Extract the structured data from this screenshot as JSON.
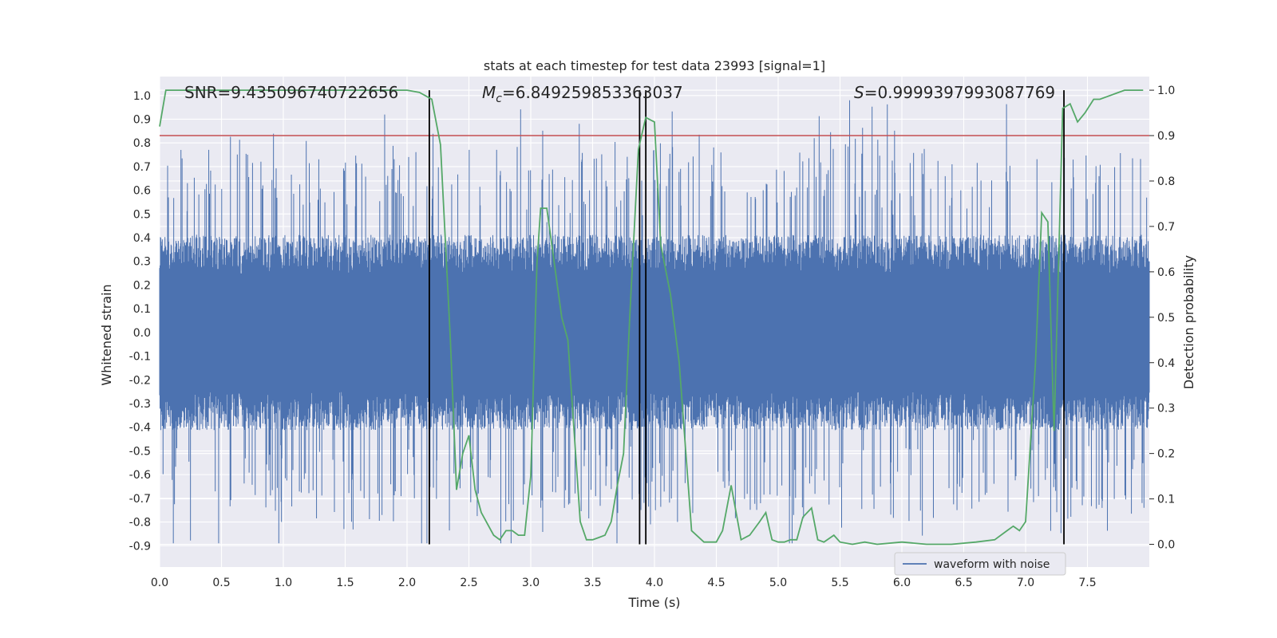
{
  "chart_data": {
    "type": "line",
    "title": "stats at each timestep for test data 23993 [signal=1]",
    "xlabel": "Time (s)",
    "ylabel": "Whitened strain",
    "ylabel_right": "Detection probability",
    "xlim": [
      0.0,
      8.0
    ],
    "ylim": [
      -0.99,
      1.08
    ],
    "ylim_right": [
      -0.05,
      1.03
    ],
    "x_ticks": [
      "0.0",
      "0.5",
      "1.0",
      "1.5",
      "2.0",
      "2.5",
      "3.0",
      "3.5",
      "4.0",
      "4.5",
      "5.0",
      "5.5",
      "6.0",
      "6.5",
      "7.0",
      "7.5"
    ],
    "y_ticks": [
      "-0.9",
      "-0.8",
      "-0.7",
      "-0.6",
      "-0.5",
      "-0.4",
      "-0.3",
      "-0.2",
      "-0.1",
      "0.0",
      "0.1",
      "0.2",
      "0.3",
      "0.4",
      "0.5",
      "0.6",
      "0.7",
      "0.8",
      "0.9",
      "1.0"
    ],
    "y_ticks_right": [
      "0.0",
      "0.1",
      "0.2",
      "0.3",
      "0.4",
      "0.5",
      "0.6",
      "0.7",
      "0.8",
      "0.9",
      "1.0"
    ],
    "grid": true,
    "legend": {
      "label": "waveform with noise",
      "position": "bottom-right"
    },
    "annotations": {
      "snr": "SNR=9.435096740722656",
      "mc_symbol": "M",
      "mc_sub": "c",
      "mc_value": "=6.849259853363037",
      "s_symbol": "S",
      "s_value": "=0.9999397993087769"
    },
    "threshold": {
      "axis": "right",
      "value": 0.9,
      "color": "#c44e52"
    },
    "vertical_lines": [
      2.18,
      3.88,
      3.93,
      7.31
    ],
    "vline_color": "#000000",
    "waveform": {
      "name": "waveform with noise",
      "color": "#4c72b0",
      "x_range": [
        0.0,
        8.0
      ],
      "typical_amplitude": 0.33,
      "peak_max": 0.98,
      "peak_min": -0.89
    },
    "probability": {
      "color": "#55a868",
      "x": [
        0.0,
        0.05,
        0.5,
        1.0,
        1.5,
        2.0,
        2.1,
        2.2,
        2.27,
        2.35,
        2.4,
        2.45,
        2.5,
        2.55,
        2.6,
        2.7,
        2.75,
        2.8,
        2.85,
        2.9,
        2.95,
        3.0,
        3.05,
        3.08,
        3.13,
        3.2,
        3.25,
        3.3,
        3.4,
        3.45,
        3.5,
        3.55,
        3.6,
        3.65,
        3.7,
        3.75,
        3.8,
        3.87,
        3.93,
        4.0,
        4.05,
        4.13,
        4.2,
        4.3,
        4.4,
        4.5,
        4.55,
        4.62,
        4.7,
        4.77,
        4.85,
        4.9,
        4.95,
        5.0,
        5.05,
        5.1,
        5.15,
        5.2,
        5.27,
        5.32,
        5.37,
        5.45,
        5.5,
        5.6,
        5.7,
        5.8,
        6.0,
        6.2,
        6.4,
        6.6,
        6.75,
        6.85,
        6.9,
        6.95,
        7.0,
        7.08,
        7.13,
        7.18,
        7.23,
        7.3,
        7.36,
        7.42,
        7.48,
        7.55,
        7.6,
        7.7,
        7.8,
        7.85,
        7.9,
        7.95
      ],
      "y": [
        0.92,
        1.0,
        1.0,
        1.0,
        1.0,
        1.0,
        0.995,
        0.98,
        0.88,
        0.45,
        0.12,
        0.2,
        0.24,
        0.12,
        0.07,
        0.02,
        0.01,
        0.03,
        0.03,
        0.02,
        0.02,
        0.15,
        0.62,
        0.74,
        0.74,
        0.6,
        0.5,
        0.45,
        0.05,
        0.01,
        0.01,
        0.015,
        0.02,
        0.05,
        0.13,
        0.2,
        0.5,
        0.87,
        0.94,
        0.93,
        0.66,
        0.55,
        0.4,
        0.03,
        0.005,
        0.005,
        0.03,
        0.13,
        0.01,
        0.02,
        0.05,
        0.07,
        0.01,
        0.005,
        0.005,
        0.01,
        0.01,
        0.06,
        0.08,
        0.01,
        0.005,
        0.02,
        0.005,
        0.0,
        0.005,
        0.0,
        0.005,
        0.0,
        0.0,
        0.005,
        0.01,
        0.03,
        0.04,
        0.03,
        0.05,
        0.4,
        0.73,
        0.71,
        0.25,
        0.96,
        0.97,
        0.93,
        0.95,
        0.98,
        0.98,
        0.99,
        1.0,
        1.0,
        1.0,
        1.0
      ]
    }
  }
}
